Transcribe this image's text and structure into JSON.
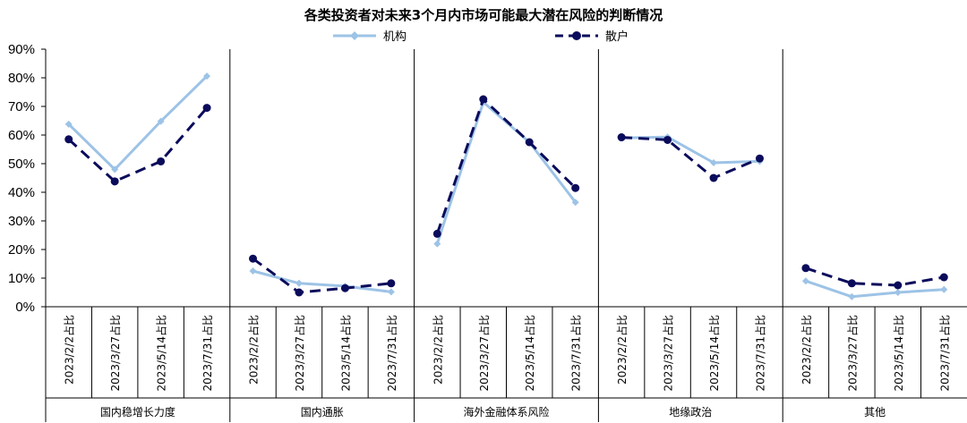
{
  "chart_data": {
    "type": "line",
    "title": "各类投资者对未来3个月内市场可能最大潜在风险的判断情况",
    "groups": [
      "国内稳增长力度",
      "国内通胀",
      "海外金融体系风险",
      "地缘政治",
      "其他"
    ],
    "categories": [
      "2023/2/2占比",
      "2023/3/27占比",
      "2023/5/14占比",
      "2023/7/31占比"
    ],
    "ylim": [
      0,
      90
    ],
    "yticks": [
      "0%",
      "10%",
      "20%",
      "30%",
      "40%",
      "50%",
      "60%",
      "70%",
      "80%",
      "90%"
    ],
    "legend_position": "top",
    "series": [
      {
        "name": "机构",
        "color": "#9dc3e6",
        "style": "solid",
        "values": [
          [
            63.8,
            48.0,
            64.8,
            80.6
          ],
          [
            12.5,
            8.2,
            7.2,
            5.2
          ],
          [
            22.0,
            71.5,
            57.5,
            36.5
          ],
          [
            59.0,
            59.3,
            50.3,
            50.8
          ],
          [
            9.0,
            3.5,
            5.0,
            6.0
          ]
        ]
      },
      {
        "name": "散户",
        "color": "#0b0b5c",
        "style": "dashed",
        "values": [
          [
            58.5,
            43.8,
            50.8,
            69.5
          ],
          [
            16.8,
            5.0,
            6.5,
            8.2
          ],
          [
            25.5,
            72.5,
            57.5,
            41.5
          ],
          [
            59.2,
            58.3,
            45.0,
            51.8
          ],
          [
            13.5,
            8.2,
            7.5,
            10.3
          ]
        ]
      }
    ]
  }
}
